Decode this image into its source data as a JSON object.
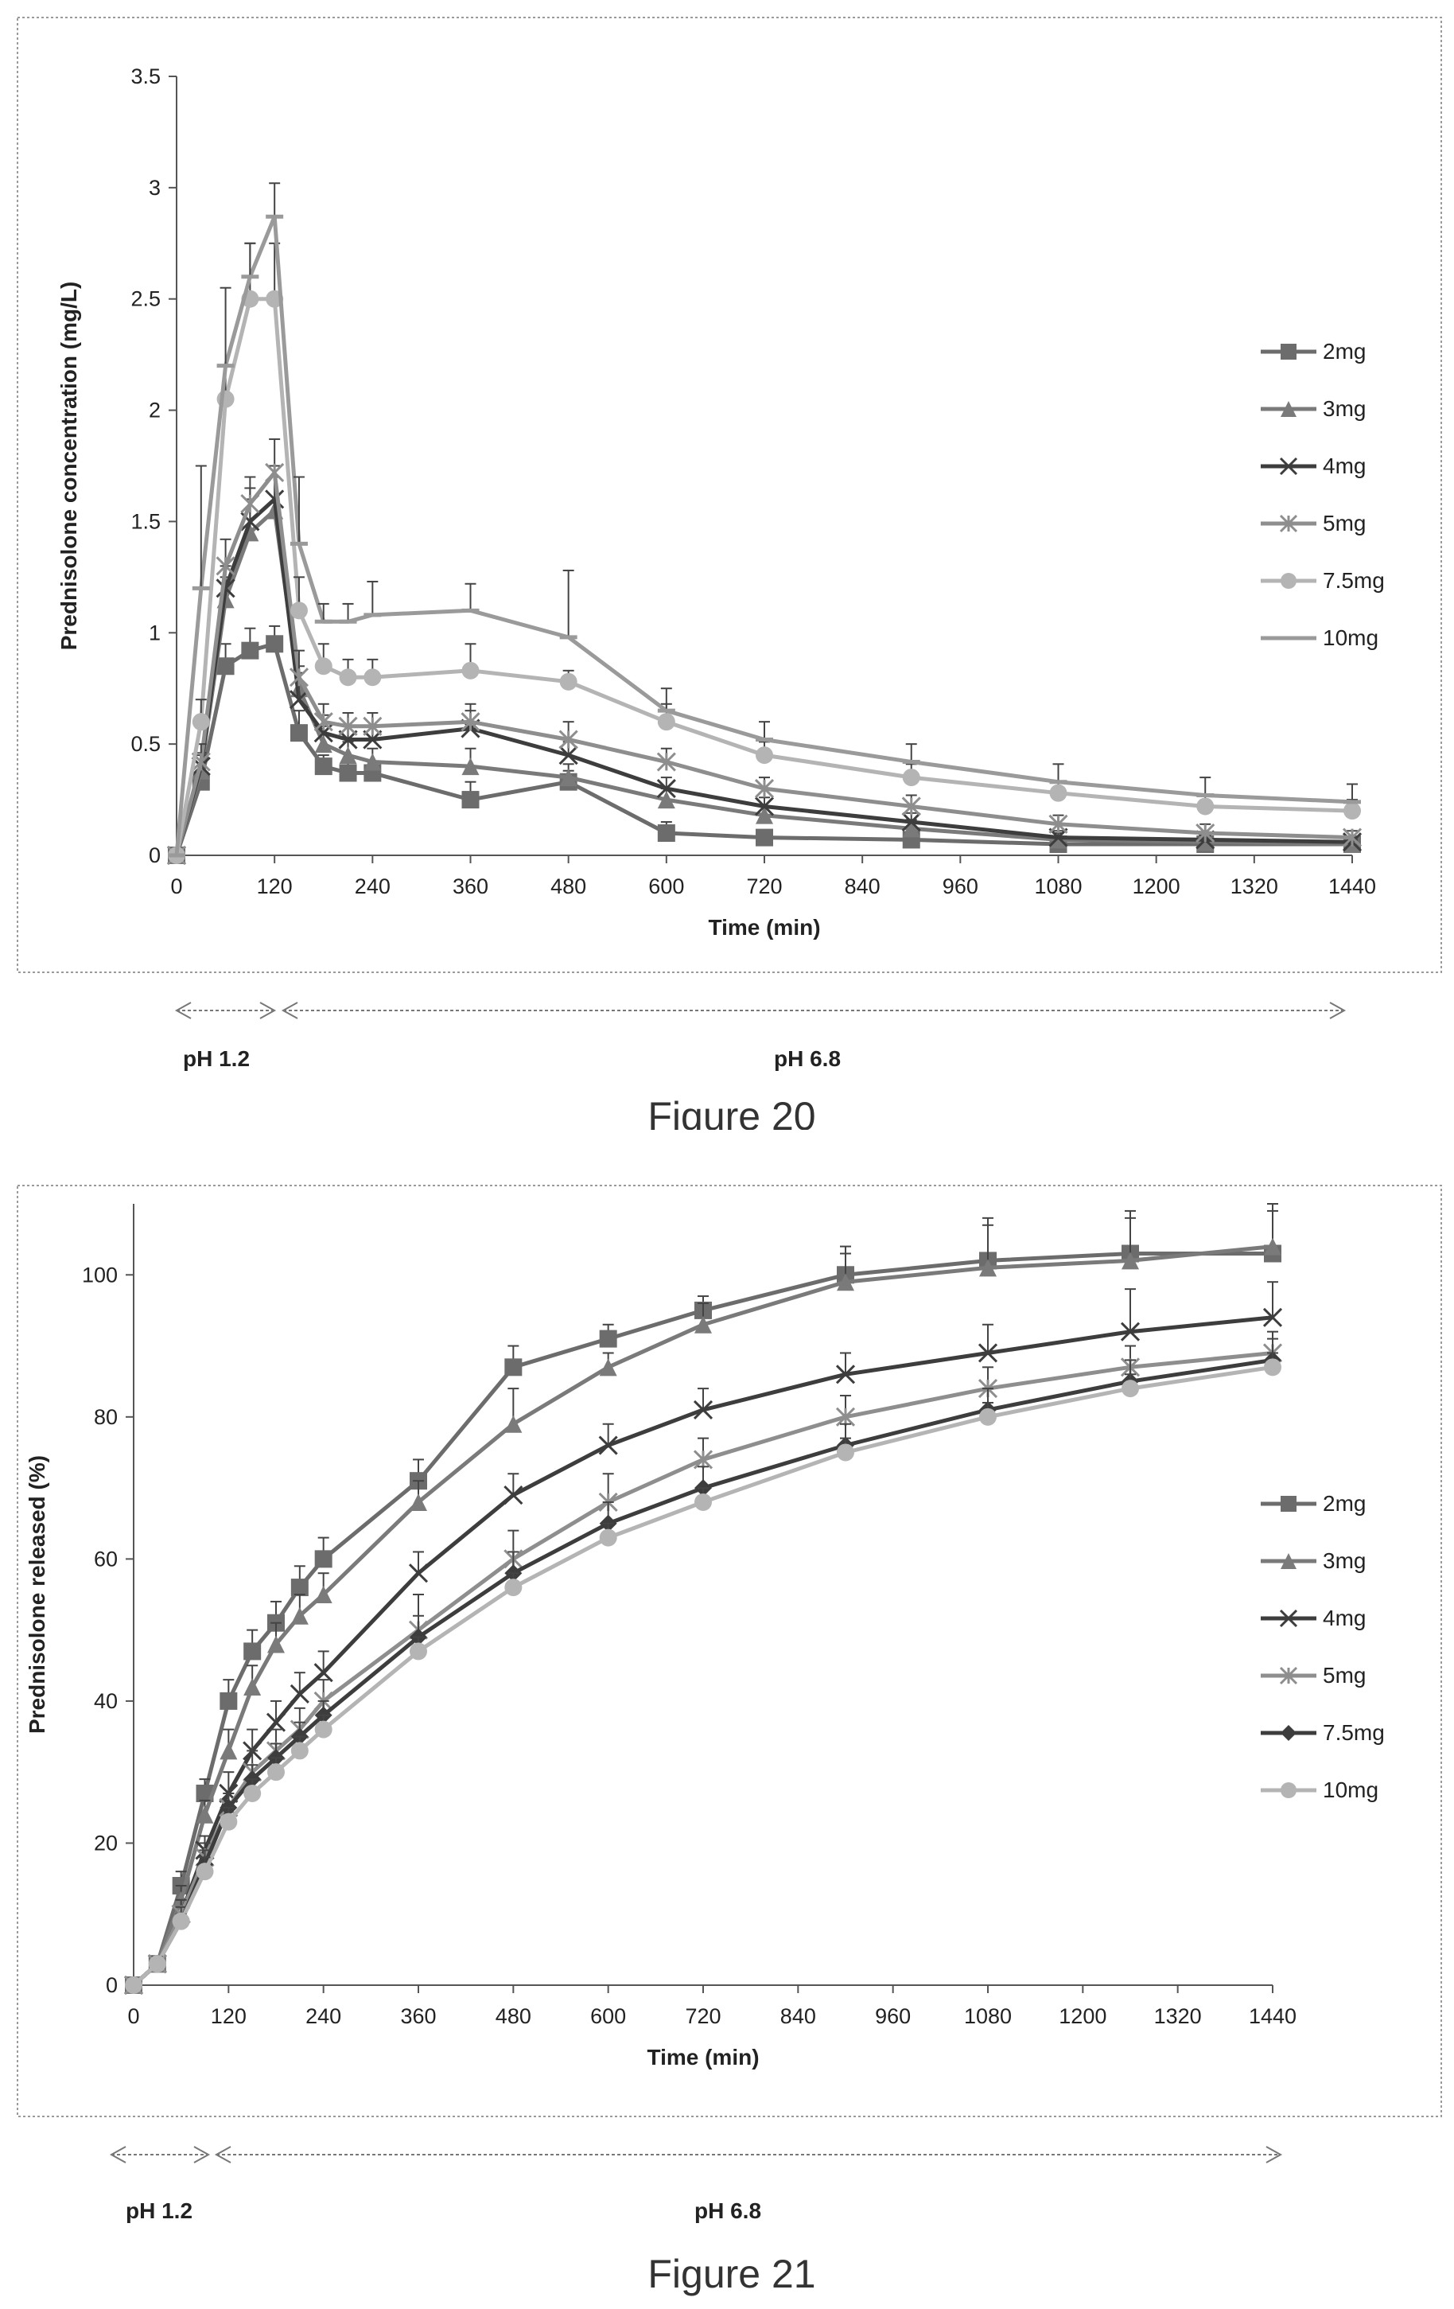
{
  "colors": {
    "frame": "#9a9a9a",
    "axis": "#555555",
    "text": "#222222",
    "arrow": "#777777",
    "caption": "#333333"
  },
  "chart_data": [
    {
      "type": "line",
      "figure_label": "Figure 20",
      "title": "",
      "xlabel": "Time (min)",
      "ylabel": "Prednisolone concentration (mg/L)",
      "xlim": [
        0,
        1440
      ],
      "ylim": [
        0,
        3.5
      ],
      "xticks": [
        0,
        120,
        240,
        360,
        480,
        600,
        720,
        840,
        960,
        1080,
        1200,
        1320,
        1440
      ],
      "yticks": [
        0,
        0.5,
        1,
        1.5,
        2,
        2.5,
        3,
        3.5
      ],
      "ytick_labels": [
        "0",
        "0.5",
        "1",
        "1.5",
        "2",
        "2.5",
        "3",
        "3.5"
      ],
      "grid": false,
      "legend_position": "right",
      "x": [
        0,
        30,
        60,
        90,
        120,
        150,
        180,
        210,
        240,
        360,
        480,
        600,
        720,
        900,
        1080,
        1260,
        1440
      ],
      "series": [
        {
          "name": "2mg",
          "color": "#6c6c6c",
          "marker": "square",
          "values": [
            0,
            0.33,
            0.85,
            0.92,
            0.95,
            0.55,
            0.4,
            0.37,
            0.37,
            0.25,
            0.33,
            0.1,
            0.08,
            0.07,
            0.05,
            0.05,
            0.05
          ],
          "errors": [
            0,
            0.05,
            0.1,
            0.1,
            0.08,
            0.1,
            0.05,
            0.05,
            0.05,
            0.08,
            0.05,
            0.05,
            0.03,
            0.03,
            0.02,
            0.02,
            0.02
          ]
        },
        {
          "name": "3mg",
          "color": "#7a7a7a",
          "marker": "triangle",
          "values": [
            0,
            0.38,
            1.15,
            1.45,
            1.55,
            0.75,
            0.5,
            0.45,
            0.42,
            0.4,
            0.35,
            0.25,
            0.18,
            0.12,
            0.07,
            0.06,
            0.05
          ],
          "errors": [
            0,
            0.08,
            0.1,
            0.15,
            0.15,
            0.1,
            0.08,
            0.06,
            0.06,
            0.08,
            0.06,
            0.05,
            0.04,
            0.04,
            0.03,
            0.03,
            0.02
          ]
        },
        {
          "name": "4mg",
          "color": "#3d3d3d",
          "marker": "x",
          "values": [
            0,
            0.4,
            1.2,
            1.5,
            1.6,
            0.7,
            0.55,
            0.52,
            0.52,
            0.57,
            0.45,
            0.3,
            0.22,
            0.15,
            0.08,
            0.07,
            0.06
          ],
          "errors": [
            0,
            0.05,
            0.1,
            0.15,
            0.15,
            0.12,
            0.08,
            0.06,
            0.06,
            0.08,
            0.06,
            0.05,
            0.04,
            0.04,
            0.03,
            0.03,
            0.02
          ]
        },
        {
          "name": "5mg",
          "color": "#8e8e8e",
          "marker": "asterisk",
          "values": [
            0,
            0.42,
            1.3,
            1.58,
            1.72,
            0.8,
            0.6,
            0.58,
            0.58,
            0.6,
            0.52,
            0.42,
            0.3,
            0.22,
            0.14,
            0.1,
            0.08
          ],
          "errors": [
            0,
            0.08,
            0.12,
            0.12,
            0.15,
            0.12,
            0.08,
            0.06,
            0.06,
            0.08,
            0.08,
            0.06,
            0.05,
            0.05,
            0.04,
            0.04,
            0.03
          ]
        },
        {
          "name": "7.5mg",
          "color": "#b4b4b4",
          "marker": "circle",
          "values": [
            0,
            0.6,
            2.05,
            2.5,
            2.5,
            1.1,
            0.85,
            0.8,
            0.8,
            0.83,
            0.78,
            0.6,
            0.45,
            0.35,
            0.28,
            0.22,
            0.2
          ],
          "errors": [
            0,
            0.1,
            0.15,
            0.25,
            0.25,
            0.15,
            0.1,
            0.08,
            0.08,
            0.12,
            0.05,
            0.08,
            0.06,
            0.06,
            0.05,
            0.05,
            0.05
          ]
        },
        {
          "name": "10mg",
          "color": "#9a9a9a",
          "marker": "dash",
          "values": [
            0,
            1.2,
            2.2,
            2.6,
            2.87,
            1.4,
            1.05,
            1.05,
            1.08,
            1.1,
            0.98,
            0.65,
            0.52,
            0.42,
            0.33,
            0.27,
            0.24
          ],
          "errors": [
            0,
            0.55,
            0.35,
            0.15,
            0.15,
            0.3,
            0.08,
            0.08,
            0.15,
            0.12,
            0.3,
            0.1,
            0.08,
            0.08,
            0.08,
            0.08,
            0.08
          ]
        }
      ],
      "annotations": {
        "ph_low": "pH 1.2",
        "ph_high": "pH 6.8"
      }
    },
    {
      "type": "line",
      "figure_label": "Figure 21",
      "title": "",
      "xlabel": "Time (min)",
      "ylabel": "Prednisolone released (%)",
      "xlim": [
        0,
        1440
      ],
      "ylim": [
        0,
        110
      ],
      "xticks": [
        0,
        120,
        240,
        360,
        480,
        600,
        720,
        840,
        960,
        1080,
        1200,
        1320,
        1440
      ],
      "yticks": [
        0,
        20,
        40,
        60,
        80,
        100
      ],
      "ytick_labels": [
        "0",
        "20",
        "40",
        "60",
        "80",
        "100"
      ],
      "grid": false,
      "legend_position": "right",
      "x": [
        0,
        30,
        60,
        90,
        120,
        150,
        180,
        210,
        240,
        360,
        480,
        600,
        720,
        900,
        1080,
        1260,
        1440
      ],
      "series": [
        {
          "name": "2mg",
          "color": "#6c6c6c",
          "marker": "square",
          "values": [
            0,
            3,
            14,
            27,
            40,
            47,
            51,
            56,
            60,
            71,
            87,
            91,
            95,
            100,
            102,
            103,
            103
          ],
          "errors": [
            0,
            1,
            2,
            2,
            3,
            3,
            3,
            3,
            3,
            3,
            3,
            2,
            2,
            4,
            6,
            6,
            6
          ]
        },
        {
          "name": "3mg",
          "color": "#7a7a7a",
          "marker": "triangle",
          "values": [
            0,
            3,
            12,
            24,
            33,
            42,
            48,
            52,
            55,
            68,
            79,
            87,
            93,
            99,
            101,
            102,
            104
          ],
          "errors": [
            0,
            1,
            2,
            2,
            3,
            3,
            3,
            3,
            3,
            3,
            5,
            2,
            3,
            4,
            6,
            6,
            6
          ]
        },
        {
          "name": "4mg",
          "color": "#3d3d3d",
          "marker": "x",
          "values": [
            0,
            3,
            10,
            19,
            27,
            33,
            37,
            41,
            44,
            58,
            69,
            76,
            81,
            86,
            89,
            92,
            94
          ],
          "errors": [
            0,
            1,
            2,
            2,
            3,
            3,
            3,
            3,
            3,
            3,
            3,
            3,
            3,
            3,
            4,
            6,
            5
          ]
        },
        {
          "name": "5mg",
          "color": "#8e8e8e",
          "marker": "asterisk",
          "values": [
            0,
            3,
            10,
            18,
            25,
            30,
            33,
            36,
            40,
            50,
            60,
            68,
            74,
            80,
            84,
            87,
            89
          ],
          "errors": [
            0,
            1,
            2,
            2,
            2,
            3,
            3,
            3,
            3,
            5,
            4,
            4,
            3,
            3,
            3,
            3,
            3
          ]
        },
        {
          "name": "7.5mg",
          "color": "#3d3d3d",
          "marker": "diamond",
          "values": [
            0,
            3,
            9,
            17,
            25,
            29,
            32,
            35,
            38,
            49,
            58,
            65,
            70,
            76,
            81,
            85,
            88
          ],
          "errors": [
            0,
            1,
            2,
            2,
            2,
            2,
            2,
            2,
            2,
            3,
            3,
            3,
            3,
            3,
            3,
            3,
            3
          ]
        },
        {
          "name": "10mg",
          "color": "#b4b4b4",
          "marker": "circle",
          "values": [
            0,
            3,
            9,
            16,
            23,
            27,
            30,
            33,
            36,
            47,
            56,
            63,
            68,
            75,
            80,
            84,
            87
          ],
          "errors": [
            0,
            1,
            1,
            2,
            2,
            2,
            2,
            2,
            2,
            2,
            2,
            2,
            2,
            2,
            2,
            2,
            2
          ]
        }
      ],
      "annotations": {
        "ph_low": "pH 1.2",
        "ph_high": "pH 6.8"
      }
    }
  ]
}
